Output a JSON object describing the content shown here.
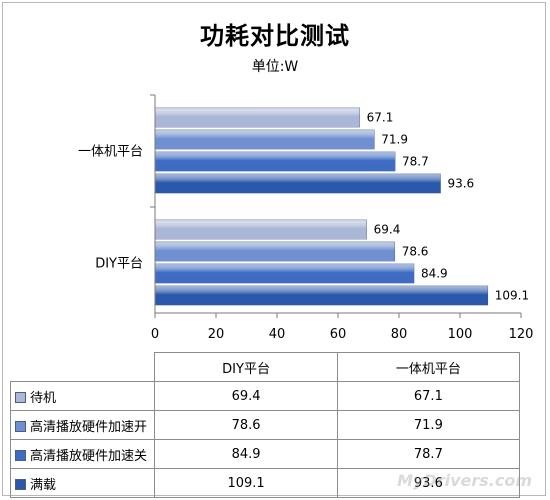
{
  "chart_data": {
    "type": "bar",
    "orientation": "horizontal",
    "title": "功耗对比测试",
    "subtitle": "单位:W",
    "categories": [
      "一体机平台",
      "DIY平台"
    ],
    "series": [
      {
        "name": "待机",
        "values": [
          67.1,
          69.4
        ],
        "color": "#aab7d6"
      },
      {
        "name": "高清播放硬件加速开",
        "values": [
          71.9,
          78.6
        ],
        "color": "#6f8fd0"
      },
      {
        "name": "高清播放硬件加速关",
        "values": [
          78.7,
          84.9
        ],
        "color": "#3e6cc2"
      },
      {
        "name": "满载",
        "values": [
          93.6,
          109.1
        ],
        "color": "#2a59ab"
      }
    ],
    "xlim": [
      0,
      120
    ],
    "xticks": [
      0,
      20,
      40,
      60,
      80,
      100,
      120
    ],
    "grid": false,
    "legend": "table-below"
  },
  "table": {
    "columns": [
      "DIY平台",
      "一体机平台"
    ],
    "rows": [
      {
        "label": "待机",
        "values": [
          "69.4",
          "67.1"
        ]
      },
      {
        "label": "高清播放硬件加速开",
        "values": [
          "78.6",
          "71.9"
        ]
      },
      {
        "label": "高清播放硬件加速关",
        "values": [
          "84.9",
          "78.7"
        ]
      },
      {
        "label": "满载",
        "values": [
          "109.1",
          "93.6"
        ]
      }
    ]
  },
  "watermark": "MyDrivers.com"
}
